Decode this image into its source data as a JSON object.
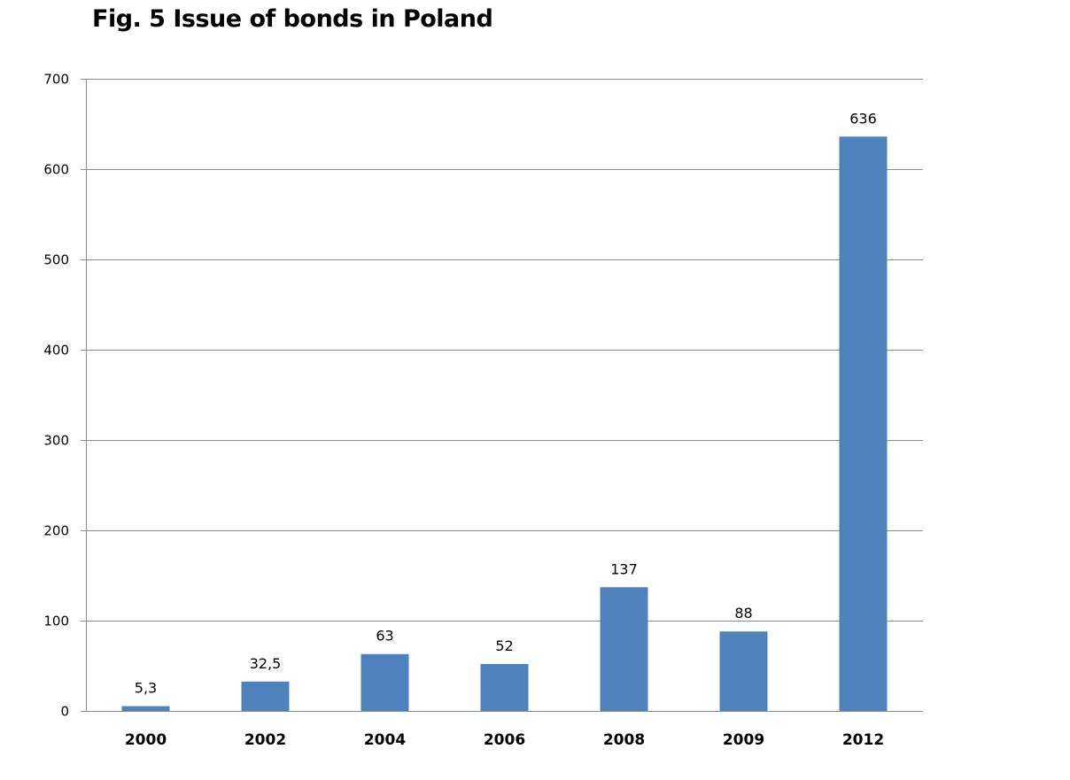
{
  "chart_data": {
    "type": "bar",
    "title": "Fig. 5 Issue of bonds in Poland",
    "categories": [
      "2000",
      "2002",
      "2004",
      "2006",
      "2008",
      "2009",
      "2012"
    ],
    "values": [
      5.3,
      32.5,
      63,
      52,
      137,
      88,
      636
    ],
    "data_labels": [
      "5,3",
      "32,5",
      "63",
      "52",
      "137",
      "88",
      "636"
    ],
    "ylim": [
      0,
      700
    ],
    "yticks": [
      0,
      100,
      200,
      300,
      400,
      500,
      600,
      700
    ],
    "grid": true,
    "bar_color": "#4f81bd",
    "grid_color": "#8c8c8c",
    "axis_color": "#8c8c8c"
  }
}
